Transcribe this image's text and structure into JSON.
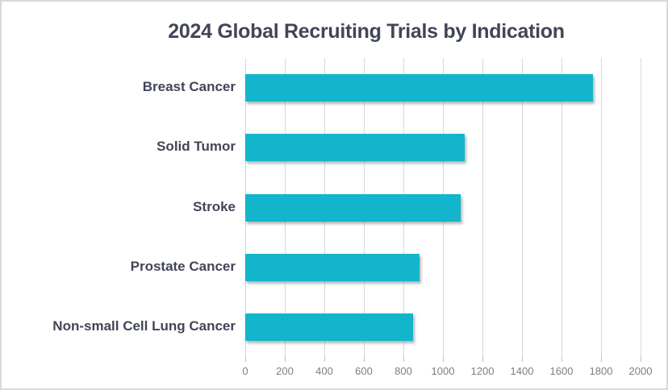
{
  "chart_data": {
    "type": "bar",
    "orientation": "horizontal",
    "title": "2024 Global Recruiting Trials by Indication",
    "categories": [
      "Breast Cancer",
      "Solid Tumor",
      "Stroke",
      "Prostate Cancer",
      "Non-small Cell Lung Cancer"
    ],
    "values": [
      1760,
      1110,
      1090,
      880,
      850
    ],
    "xlabel": "",
    "ylabel": "",
    "xlim": [
      0,
      2000
    ],
    "x_ticks": [
      0,
      200,
      400,
      600,
      800,
      1000,
      1200,
      1400,
      1600,
      1800,
      2000
    ],
    "grid": true,
    "legend": false
  },
  "colors": {
    "bar": "#12B5CC",
    "title_text": "#414559",
    "category_text": "#414559",
    "tick_text": "#7F7F7F",
    "gridline": "#D9D9D9",
    "border": "#D9D9D9"
  }
}
